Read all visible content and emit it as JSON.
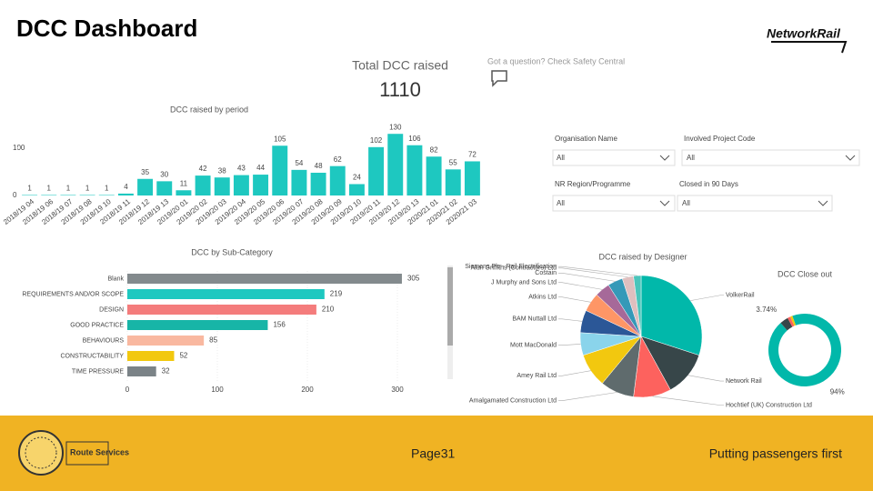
{
  "header": {
    "title": "DCC Dashboard",
    "logo": "NetworkRail"
  },
  "card": {
    "label": "Total DCC raised",
    "value": 1110
  },
  "help": "Got a question? Check Safety Central",
  "filters": [
    {
      "label": "Organisation Name",
      "value": "All"
    },
    {
      "label": "Involved Project Code",
      "value": "All"
    },
    {
      "label": "NR Region/Programme",
      "value": "All"
    },
    {
      "label": "Closed in 90 Days",
      "value": "All"
    }
  ],
  "chart_data": [
    {
      "type": "bar",
      "title": "DCC raised by period",
      "categories": [
        "2018/19 04",
        "2018/19 06",
        "2018/19 07",
        "2018/19 08",
        "2018/19 10",
        "2018/19 11",
        "2018/19 12",
        "2018/19 13",
        "2019/20 01",
        "2019/20 02",
        "2019/20 03",
        "2019/20 04",
        "2019/20 05",
        "2019/20 06",
        "2019/20 07",
        "2019/20 08",
        "2019/20 09",
        "2019/20 10",
        "2019/20 11",
        "2019/20 12",
        "2019/20 13",
        "2020/21 01",
        "2020/21 02",
        "2020/21 03"
      ],
      "values": [
        1,
        1,
        1,
        1,
        1,
        4,
        35,
        30,
        11,
        42,
        38,
        43,
        44,
        105,
        54,
        48,
        62,
        24,
        102,
        130,
        106,
        82,
        55,
        72
      ],
      "color": "#1ec8c0",
      "ylim": [
        0,
        140
      ],
      "yticks": [
        0,
        100
      ]
    },
    {
      "type": "hbar",
      "title": "DCC by Sub-Category",
      "categories": [
        "Blank",
        "REQUIREMENTS AND/OR SCOPE",
        "DESIGN",
        "GOOD PRACTICE",
        "BEHAVIOURS",
        "CONSTRUCTABILITY",
        "TIME PRESSURE"
      ],
      "values": [
        305,
        219,
        210,
        156,
        85,
        52,
        32
      ],
      "colors": [
        "#838a8d",
        "#1ec8c0",
        "#f47c7c",
        "#17b5a7",
        "#f9b8a0",
        "#f2c80f",
        "#7b8387"
      ],
      "xlim": [
        0,
        300
      ],
      "xticks": [
        0,
        100,
        200,
        300
      ]
    },
    {
      "type": "pie",
      "title": "DCC raised by Designer",
      "categories": [
        "VolkerRail",
        "Network Rail",
        "Hochtief (UK) Construction Ltd",
        "Amalgamated Construction Ltd",
        "Amey Rail Ltd",
        "Mott MacDonald",
        "BAM Nuttall Ltd",
        "Atkins Ltd",
        "J Murphy and Sons Ltd",
        "Costain",
        "Alun Griffiths (Contractors) Ltd",
        "Siemens Plc - Rail Electrification"
      ],
      "values": [
        30,
        12,
        10,
        9,
        9,
        6,
        6,
        5,
        4,
        4,
        3,
        2
      ],
      "colors": [
        "#01b8aa",
        "#374649",
        "#fd625e",
        "#5f6b6d",
        "#f2c80f",
        "#8ad4eb",
        "#2b5797",
        "#fe9666",
        "#a66999",
        "#3599b8",
        "#dfbfbf",
        "#4ac5bb"
      ]
    },
    {
      "type": "donut",
      "title": "DCC Close out",
      "values": [
        94,
        3.74,
        1.3,
        0.96
      ],
      "value_labels": [
        "94%",
        "3.74%",
        null,
        null
      ],
      "colors": [
        "#01b8aa",
        "#374649",
        "#fd625e",
        "#f2c80f"
      ]
    }
  ],
  "footer": {
    "logo": "Route Services",
    "page": "Page31",
    "tagline": "Putting passengers first"
  }
}
